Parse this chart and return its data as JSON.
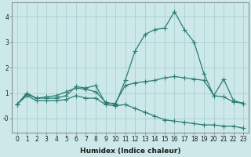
{
  "xlabel": "Humidex (Indice chaleur)",
  "background_color": "#cce8e8",
  "grid_color": "#aacfcf",
  "line_color": "#2d7d74",
  "xlim": [
    -0.5,
    23.5
  ],
  "ylim": [
    -0.55,
    4.55
  ],
  "yticks": [
    0,
    1,
    2,
    3,
    4
  ],
  "ytick_labels": [
    "-0",
    "1",
    "2",
    "3",
    "4"
  ],
  "xticks": [
    0,
    1,
    2,
    3,
    4,
    5,
    6,
    7,
    8,
    9,
    10,
    11,
    12,
    13,
    14,
    15,
    16,
    17,
    18,
    19,
    20,
    21,
    22,
    23
  ],
  "line1_x": [
    0,
    1,
    2,
    3,
    4,
    5,
    6,
    7,
    8,
    9,
    10,
    11,
    12,
    13,
    14,
    15,
    16,
    17,
    18,
    19,
    20,
    21,
    22,
    23
  ],
  "line1_y": [
    0.55,
    1.0,
    0.8,
    0.85,
    0.9,
    1.05,
    1.2,
    1.15,
    1.05,
    0.65,
    0.55,
    1.5,
    2.65,
    3.3,
    3.5,
    3.55,
    4.2,
    3.5,
    3.0,
    1.75,
    0.9,
    1.55,
    0.7,
    0.6
  ],
  "line2_x": [
    0,
    1,
    2,
    3,
    4,
    5,
    6,
    7,
    8,
    9,
    10,
    11,
    12,
    13,
    14,
    15,
    16,
    17,
    18,
    19,
    20,
    21,
    22,
    23
  ],
  "line2_y": [
    0.55,
    0.95,
    0.8,
    0.8,
    0.8,
    0.9,
    1.25,
    1.2,
    1.3,
    0.6,
    0.6,
    1.3,
    1.4,
    1.45,
    1.5,
    1.6,
    1.65,
    1.6,
    1.55,
    1.5,
    0.9,
    0.85,
    0.65,
    0.6
  ],
  "line3_x": [
    0,
    1,
    2,
    3,
    4,
    5,
    6,
    7,
    8,
    9,
    10,
    11,
    12,
    13,
    14,
    15,
    16,
    17,
    18,
    19,
    20,
    21,
    22,
    23
  ],
  "line3_y": [
    0.55,
    0.9,
    0.7,
    0.7,
    0.7,
    0.75,
    0.9,
    0.8,
    0.8,
    0.55,
    0.5,
    0.55,
    0.4,
    0.25,
    0.1,
    -0.05,
    -0.1,
    -0.15,
    -0.2,
    -0.25,
    -0.25,
    -0.3,
    -0.3,
    -0.38
  ],
  "marker": "+",
  "markersize": 4,
  "linewidth": 0.9,
  "tick_fontsize": 5.5,
  "label_fontsize": 6.5
}
